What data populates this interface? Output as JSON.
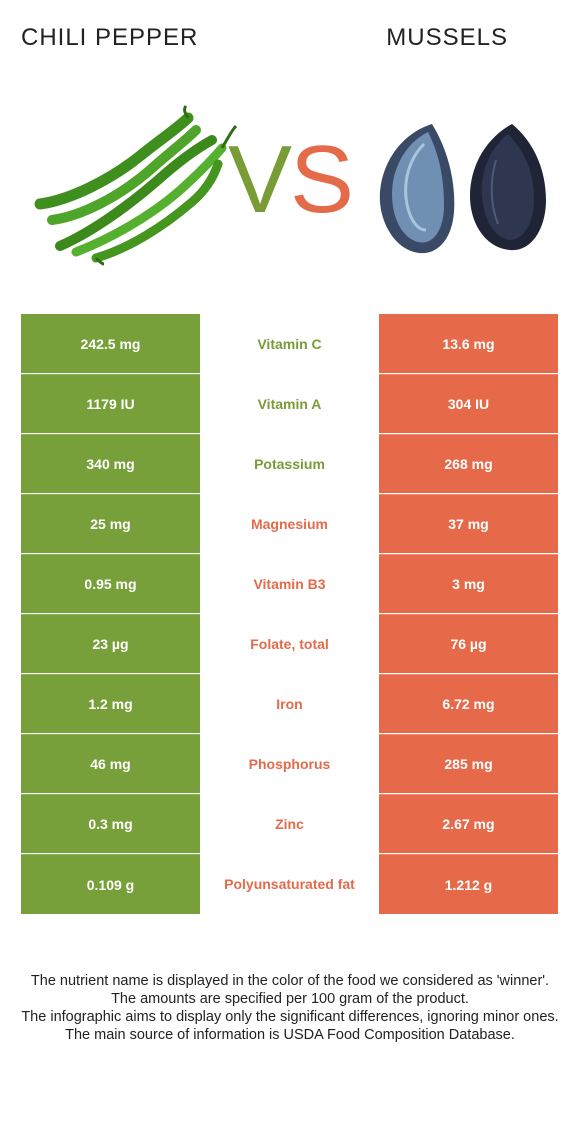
{
  "header": {
    "left_food": "CHILI PEPPER",
    "right_food": "MUSSELS",
    "vs_v": "V",
    "vs_s": "S"
  },
  "colors": {
    "left": "#77a03a",
    "right": "#e66a4a"
  },
  "rows": [
    {
      "left": "242.5 mg",
      "nutrient": "Vitamin C",
      "right": "13.6 mg",
      "winner": "left"
    },
    {
      "left": "1179 IU",
      "nutrient": "Vitamin A",
      "right": "304 IU",
      "winner": "left"
    },
    {
      "left": "340 mg",
      "nutrient": "Potassium",
      "right": "268 mg",
      "winner": "left"
    },
    {
      "left": "25 mg",
      "nutrient": "Magnesium",
      "right": "37 mg",
      "winner": "right"
    },
    {
      "left": "0.95 mg",
      "nutrient": "Vitamin B3",
      "right": "3 mg",
      "winner": "right"
    },
    {
      "left": "23 µg",
      "nutrient": "Folate, total",
      "right": "76 µg",
      "winner": "right"
    },
    {
      "left": "1.2 mg",
      "nutrient": "Iron",
      "right": "6.72 mg",
      "winner": "right"
    },
    {
      "left": "46 mg",
      "nutrient": "Phosphorus",
      "right": "285 mg",
      "winner": "right"
    },
    {
      "left": "0.3 mg",
      "nutrient": "Zinc",
      "right": "2.67 mg",
      "winner": "right"
    },
    {
      "left": "0.109 g",
      "nutrient": "Polyunsaturated fat",
      "right": "1.212 g",
      "winner": "right"
    }
  ],
  "footer": {
    "line1": "The nutrient name is displayed in the color of the food we considered as 'winner'.",
    "line2": "The amounts are specified per 100 gram of the product.",
    "line3": "The infographic aims to display only the significant differences, ignoring minor ones.",
    "line4": "The main source of information is USDA Food Composition Database."
  }
}
